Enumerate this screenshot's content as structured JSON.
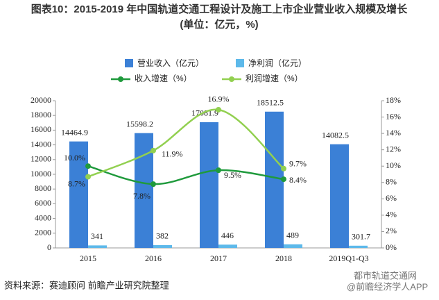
{
  "chart_data": {
    "type": "bar",
    "title": "图表10：2015-2019 年中国轨道交通工程设计及施工上市企业营业收入规模及增长",
    "subtitle": "(单位：亿元，%)",
    "source": "资料来源：赛迪顾问 前瞻产业研究院整理",
    "watermark": "都市轨道交通网",
    "watermark2": "@前瞻经济学人APP",
    "categories": [
      "2015",
      "2016",
      "2017",
      "2018",
      "2019Q1-Q3"
    ],
    "ylim": [
      0,
      20000
    ],
    "yticks": [
      0,
      2000,
      4000,
      6000,
      8000,
      10000,
      12000,
      14000,
      16000,
      18000,
      20000
    ],
    "y2lim": [
      0,
      18
    ],
    "y2ticks": [
      {
        "value": 0,
        "label": "0%"
      },
      {
        "value": 2,
        "label": "2%"
      },
      {
        "value": 4,
        "label": "4%"
      },
      {
        "value": 6,
        "label": "6%"
      },
      {
        "value": 8,
        "label": "8%"
      },
      {
        "value": 10,
        "label": "10%"
      },
      {
        "value": 12,
        "label": "12%"
      },
      {
        "value": 14,
        "label": "14%"
      },
      {
        "value": 16,
        "label": "16%"
      },
      {
        "value": 18,
        "label": "18%"
      }
    ],
    "series": [
      {
        "name": "营业收入（亿元）",
        "type": "bar",
        "color": "#3b80d6",
        "values": [
          14464.9,
          15598.2,
          17081.9,
          18512.5,
          14082.5
        ]
      },
      {
        "name": "净利润（亿元）",
        "type": "bar",
        "color": "#5db9ea",
        "values": [
          341,
          382,
          446,
          489,
          301.7
        ]
      },
      {
        "name": "收入增速（%）",
        "type": "line",
        "axis": "y2",
        "color": "#1f9a3c",
        "values": [
          10.0,
          7.8,
          9.5,
          8.4,
          null
        ],
        "value_labels": [
          "10.0%",
          "7.8%",
          "9.5%",
          "8.4%",
          null
        ]
      },
      {
        "name": "利润增速（%）",
        "type": "line",
        "axis": "y2",
        "color": "#92d050",
        "values": [
          8.7,
          11.9,
          16.9,
          9.7,
          null
        ],
        "value_labels": [
          "8.7%",
          "11.9%",
          "16.9%",
          "9.7%",
          null
        ]
      }
    ]
  }
}
